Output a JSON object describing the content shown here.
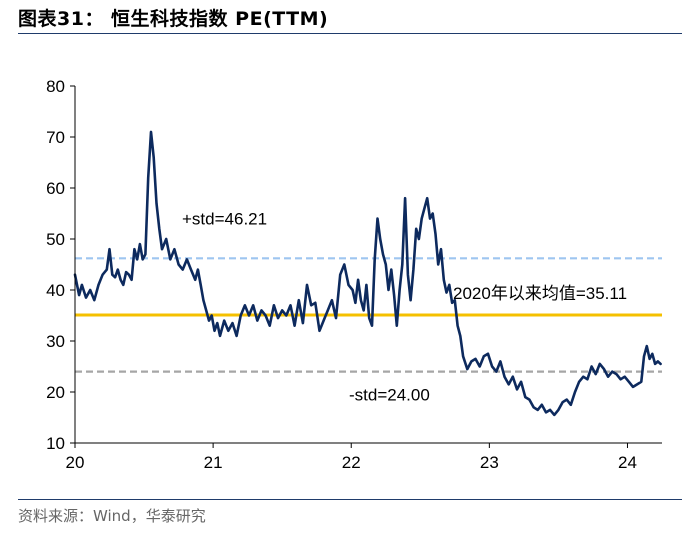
{
  "title": "图表31：  恒生科技指数 PE(TTM)",
  "source": "资料来源：Wind，华泰研究",
  "chart_data": {
    "type": "line",
    "xlabel": "",
    "ylabel": "",
    "ylim": [
      10,
      80
    ],
    "yticks": [
      10,
      20,
      30,
      40,
      50,
      60,
      70,
      80
    ],
    "xlim": [
      20,
      24.25
    ],
    "xticks": [
      20,
      21,
      22,
      23,
      24
    ],
    "xtick_labels": [
      "20",
      "21",
      "22",
      "23",
      "24"
    ],
    "grid": false,
    "legend": "none",
    "series": [
      {
        "color": "#0d2a5e",
        "x": [
          20.0,
          20.03,
          20.05,
          20.08,
          20.11,
          20.14,
          20.17,
          20.2,
          20.23,
          20.25,
          20.27,
          20.29,
          20.31,
          20.33,
          20.35,
          20.37,
          20.39,
          20.41,
          20.43,
          20.45,
          20.47,
          20.49,
          20.51,
          20.53,
          20.55,
          20.57,
          20.59,
          20.61,
          20.63,
          20.66,
          20.69,
          20.72,
          20.75,
          20.78,
          20.81,
          20.84,
          20.87,
          20.89,
          20.91,
          20.93,
          20.95,
          20.97,
          20.99,
          21.01,
          21.03,
          21.05,
          21.08,
          21.11,
          21.14,
          21.17,
          21.2,
          21.23,
          21.26,
          21.29,
          21.32,
          21.35,
          21.38,
          21.41,
          21.44,
          21.47,
          21.5,
          21.53,
          21.56,
          21.59,
          21.62,
          21.65,
          21.68,
          21.71,
          21.74,
          21.77,
          21.8,
          21.83,
          21.86,
          21.89,
          21.92,
          21.95,
          21.98,
          22.01,
          22.03,
          22.05,
          22.07,
          22.09,
          22.11,
          22.13,
          22.15,
          22.17,
          22.19,
          22.21,
          22.23,
          22.25,
          22.27,
          22.29,
          22.31,
          22.33,
          22.35,
          22.37,
          22.39,
          22.41,
          22.43,
          22.45,
          22.47,
          22.49,
          22.51,
          22.53,
          22.55,
          22.57,
          22.59,
          22.61,
          22.63,
          22.65,
          22.67,
          22.69,
          22.71,
          22.73,
          22.75,
          22.77,
          22.79,
          22.81,
          22.84,
          22.87,
          22.9,
          22.93,
          22.96,
          22.99,
          23.02,
          23.05,
          23.08,
          23.11,
          23.14,
          23.17,
          23.2,
          23.23,
          23.26,
          23.29,
          23.32,
          23.35,
          23.38,
          23.41,
          23.44,
          23.47,
          23.5,
          23.53,
          23.56,
          23.59,
          23.62,
          23.65,
          23.68,
          23.71,
          23.74,
          23.77,
          23.8,
          23.83,
          23.86,
          23.89,
          23.92,
          23.95,
          23.98,
          24.01,
          24.04,
          24.07,
          24.1,
          24.12,
          24.14,
          24.16,
          24.18,
          24.2,
          24.22,
          24.24
        ],
        "values": [
          43.0,
          39.0,
          41.0,
          38.5,
          40.0,
          38.0,
          41.0,
          43.0,
          44.0,
          48.0,
          43.0,
          42.5,
          44.0,
          42.0,
          41.0,
          43.5,
          43.0,
          42.0,
          48.0,
          46.0,
          49.0,
          46.0,
          47.0,
          62.0,
          71.0,
          66.0,
          57.0,
          52.0,
          48.0,
          50.0,
          46.0,
          48.0,
          45.0,
          44.0,
          46.0,
          44.0,
          42.0,
          44.0,
          41.0,
          38.0,
          36.0,
          34.0,
          35.0,
          32.0,
          33.5,
          31.0,
          34.0,
          32.0,
          33.5,
          31.0,
          35.0,
          37.0,
          35.0,
          37.0,
          34.0,
          36.0,
          35.0,
          33.0,
          37.0,
          34.5,
          36.0,
          35.0,
          37.0,
          33.0,
          38.0,
          33.5,
          41.0,
          37.0,
          37.5,
          32.0,
          34.0,
          36.0,
          38.0,
          34.5,
          43.0,
          45.0,
          41.0,
          40.0,
          37.5,
          42.0,
          38.0,
          36.0,
          41.0,
          34.5,
          33.0,
          46.0,
          54.0,
          50.0,
          47.0,
          45.0,
          40.0,
          44.0,
          39.0,
          33.0,
          40.0,
          45.0,
          58.0,
          43.0,
          38.0,
          44.0,
          52.0,
          50.0,
          54.0,
          56.0,
          58.0,
          54.0,
          55.0,
          51.0,
          45.0,
          48.0,
          42.0,
          39.5,
          41.0,
          37.5,
          38.0,
          33.0,
          31.0,
          27.0,
          24.5,
          26.0,
          26.5,
          25.0,
          27.0,
          27.5,
          25.0,
          24.0,
          26.0,
          23.0,
          21.5,
          23.0,
          20.5,
          22.0,
          19.0,
          18.5,
          17.0,
          16.5,
          17.5,
          16.0,
          16.5,
          15.5,
          16.5,
          18.0,
          18.5,
          17.5,
          20.0,
          22.0,
          23.0,
          22.5,
          25.0,
          23.5,
          25.5,
          24.5,
          23.0,
          24.0,
          23.5,
          22.5,
          23.0,
          22.0,
          21.0,
          21.5,
          22.0,
          27.0,
          29.0,
          26.5,
          27.5,
          25.5,
          26.0,
          25.5
        ]
      }
    ],
    "reference_lines": [
      {
        "value": 46.21,
        "label": "+std=46.21",
        "color": "#9ec5f0",
        "style": "dashed"
      },
      {
        "value": 35.11,
        "label": "2020年以来均值=35.11",
        "color": "#f5c000",
        "style": "solid"
      },
      {
        "value": 24.0,
        "label": "-std=24.00",
        "color": "#a6a6a6",
        "style": "dashed"
      }
    ]
  }
}
